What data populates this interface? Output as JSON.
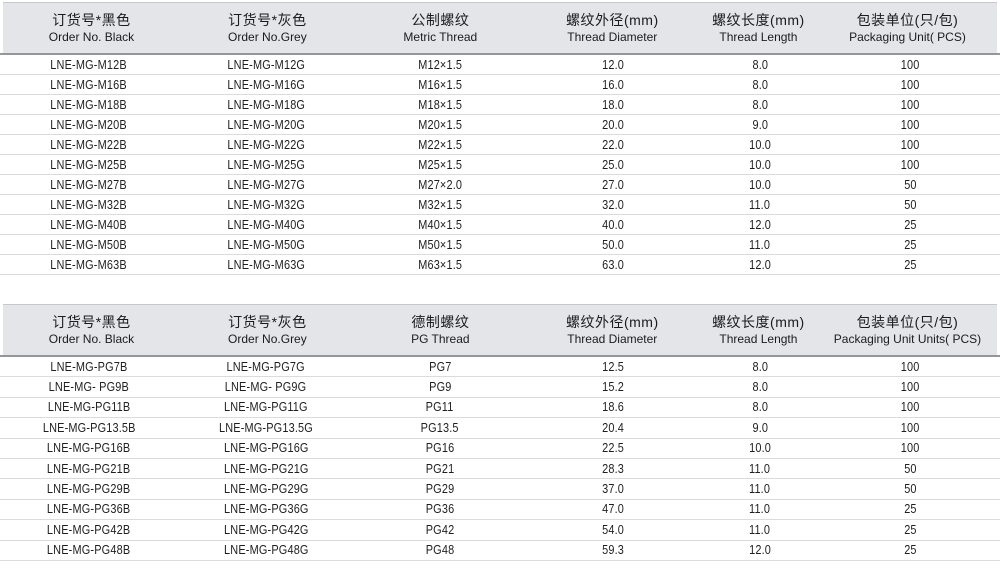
{
  "colors": {
    "header_bg": "#e3e5e9",
    "header_rule": "#94969a",
    "header_top_edge": "#c6c8cc",
    "row_divider": "#d9dbde",
    "text": "#1f1f21"
  },
  "tables": [
    {
      "name": "metric-thread-table",
      "columns": [
        {
          "zh": "订货号*黑色",
          "en": "Order No. Black"
        },
        {
          "zh": "订货号*灰色",
          "en": "Order No.Grey"
        },
        {
          "zh": "公制螺纹",
          "en": "Metric Thread"
        },
        {
          "zh": "螺纹外径(mm)",
          "en": "Thread Diameter"
        },
        {
          "zh": "螺纹长度(mm)",
          "en": "Thread Length"
        },
        {
          "zh": "包装单位(只/包)",
          "en": "Packaging Unit( PCS)"
        }
      ],
      "rows": [
        [
          "LNE-MG-M12B",
          "LNE-MG-M12G",
          "M12×1.5",
          "12.0",
          "8.0",
          "100"
        ],
        [
          "LNE-MG-M16B",
          "LNE-MG-M16G",
          "M16×1.5",
          "16.0",
          "8.0",
          "100"
        ],
        [
          "LNE-MG-M18B",
          "LNE-MG-M18G",
          "M18×1.5",
          "18.0",
          "8.0",
          "100"
        ],
        [
          "LNE-MG-M20B",
          "LNE-MG-M20G",
          "M20×1.5",
          "20.0",
          "9.0",
          "100"
        ],
        [
          "LNE-MG-M22B",
          "LNE-MG-M22G",
          "M22×1.5",
          "22.0",
          "10.0",
          "100"
        ],
        [
          "LNE-MG-M25B",
          "LNE-MG-M25G",
          "M25×1.5",
          "25.0",
          "10.0",
          "100"
        ],
        [
          "LNE-MG-M27B",
          "LNE-MG-M27G",
          "M27×2.0",
          "27.0",
          "10.0",
          "50"
        ],
        [
          "LNE-MG-M32B",
          "LNE-MG-M32G",
          "M32×1.5",
          "32.0",
          "11.0",
          "50"
        ],
        [
          "LNE-MG-M40B",
          "LNE-MG-M40G",
          "M40×1.5",
          "40.0",
          "12.0",
          "25"
        ],
        [
          "LNE-MG-M50B",
          "LNE-MG-M50G",
          "M50×1.5",
          "50.0",
          "11.0",
          "25"
        ],
        [
          "LNE-MG-M63B",
          "LNE-MG-M63G",
          "M63×1.5",
          "63.0",
          "12.0",
          "25"
        ]
      ]
    },
    {
      "name": "pg-thread-table",
      "columns": [
        {
          "zh": "订货号*黑色",
          "en": "Order No. Black"
        },
        {
          "zh": "订货号*灰色",
          "en": "Order No.Grey"
        },
        {
          "zh": "德制螺纹",
          "en": "PG Thread"
        },
        {
          "zh": "螺纹外径(mm)",
          "en": "Thread Diameter"
        },
        {
          "zh": "螺纹长度(mm)",
          "en": "Thread Length"
        },
        {
          "zh": "包装单位(只/包)",
          "en": "Packaging Unit Units( PCS)"
        }
      ],
      "rows": [
        [
          "LNE-MG-PG7B",
          "LNE-MG-PG7G",
          "PG7",
          "12.5",
          "8.0",
          "100"
        ],
        [
          "LNE-MG- PG9B",
          "LNE-MG- PG9G",
          "PG9",
          "15.2",
          "8.0",
          "100"
        ],
        [
          "LNE-MG-PG11B",
          "LNE-MG-PG11G",
          "PG11",
          "18.6",
          "8.0",
          "100"
        ],
        [
          "LNE-MG-PG13.5B",
          "LNE-MG-PG13.5G",
          "PG13.5",
          "20.4",
          "9.0",
          "100"
        ],
        [
          "LNE-MG-PG16B",
          "LNE-MG-PG16G",
          "PG16",
          "22.5",
          "10.0",
          "100"
        ],
        [
          "LNE-MG-PG21B",
          "LNE-MG-PG21G",
          "PG21",
          "28.3",
          "11.0",
          "50"
        ],
        [
          "LNE-MG-PG29B",
          "LNE-MG-PG29G",
          "PG29",
          "37.0",
          "11.0",
          "50"
        ],
        [
          "LNE-MG-PG36B",
          "LNE-MG-PG36G",
          "PG36",
          "47.0",
          "11.0",
          "25"
        ],
        [
          "LNE-MG-PG42B",
          "LNE-MG-PG42G",
          "PG42",
          "54.0",
          "11.0",
          "25"
        ],
        [
          "LNE-MG-PG48B",
          "LNE-MG-PG48G",
          "PG48",
          "59.3",
          "12.0",
          "25"
        ]
      ]
    }
  ]
}
